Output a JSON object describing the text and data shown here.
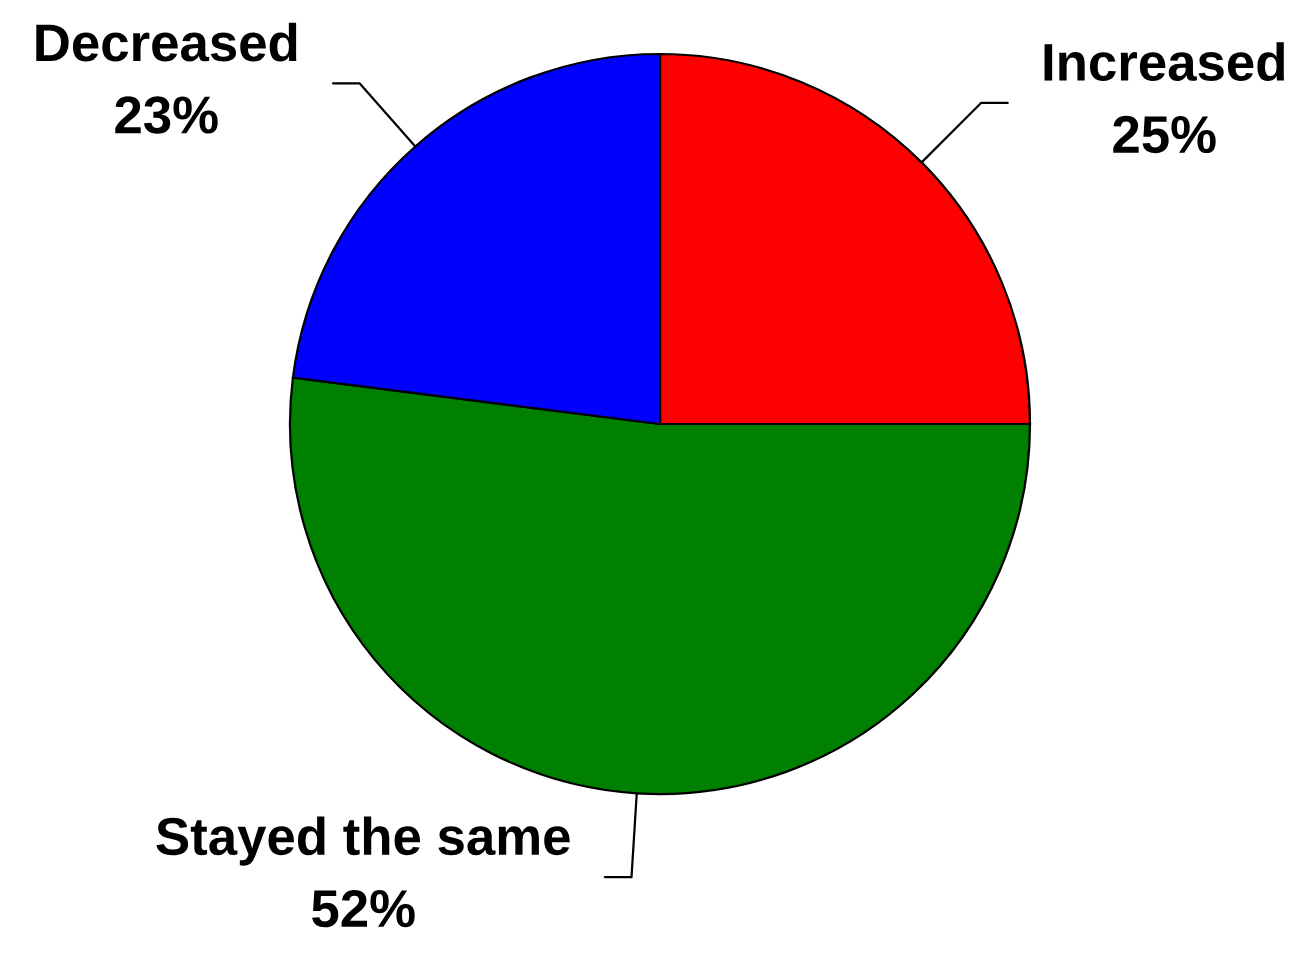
{
  "chart_data": {
    "type": "pie",
    "categories": [
      "Increased",
      "Stayed the same",
      "Decreased"
    ],
    "values": [
      25,
      52,
      23
    ],
    "colors": [
      "#ff0000",
      "#008000",
      "#0000ff"
    ],
    "value_labels": [
      "25%",
      "52%",
      "23%"
    ]
  }
}
